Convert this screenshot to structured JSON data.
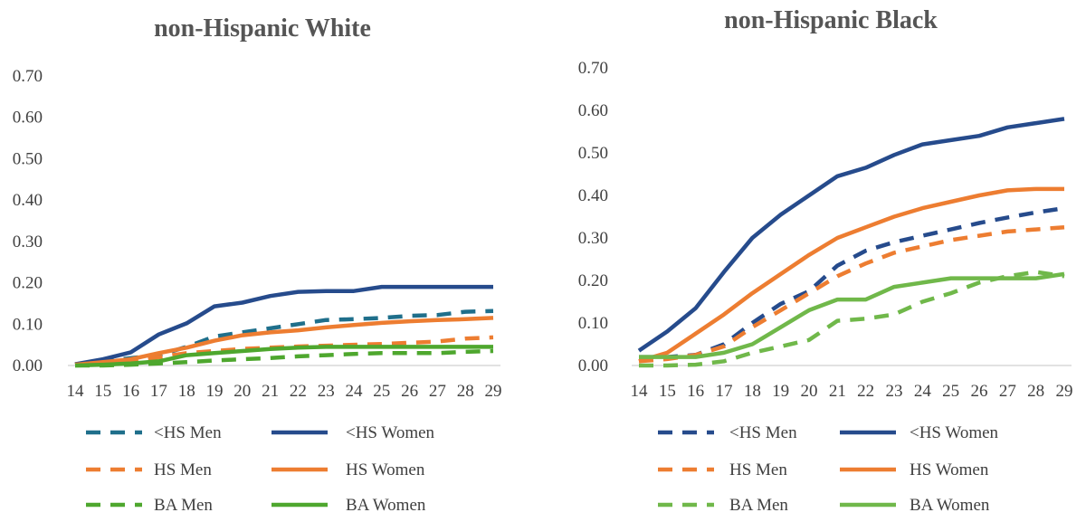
{
  "chart_data": [
    {
      "type": "line",
      "title": "non-Hispanic White",
      "xlabel": "",
      "ylabel": "",
      "x": [
        14,
        15,
        16,
        17,
        18,
        19,
        20,
        21,
        22,
        23,
        24,
        25,
        26,
        27,
        28,
        29
      ],
      "ylim": [
        0,
        0.7
      ],
      "yticks": [
        "0.00",
        "0.10",
        "0.20",
        "0.30",
        "0.40",
        "0.50",
        "0.60",
        "0.70"
      ],
      "grid": false,
      "legend_position": "bottom",
      "series": [
        {
          "name": "<HS Men",
          "color": "#1f6f8b",
          "dash": true,
          "values": [
            0.003,
            0.01,
            0.018,
            0.025,
            0.045,
            0.07,
            0.08,
            0.09,
            0.1,
            0.11,
            0.112,
            0.115,
            0.12,
            0.122,
            0.13,
            0.132
          ]
        },
        {
          "name": "<HS Women",
          "color": "#264b8c",
          "dash": false,
          "values": [
            0.003,
            0.015,
            0.032,
            0.075,
            0.102,
            0.143,
            0.152,
            0.168,
            0.178,
            0.18,
            0.18,
            0.19,
            0.19,
            0.19,
            0.19,
            0.19
          ]
        },
        {
          "name": "HS Men",
          "color": "#ed7d31",
          "dash": true,
          "values": [
            0.002,
            0.005,
            0.01,
            0.02,
            0.03,
            0.035,
            0.04,
            0.043,
            0.046,
            0.048,
            0.05,
            0.052,
            0.055,
            0.058,
            0.065,
            0.068
          ]
        },
        {
          "name": "HS Women",
          "color": "#ed7d31",
          "dash": false,
          "values": [
            0.002,
            0.008,
            0.015,
            0.03,
            0.043,
            0.06,
            0.073,
            0.08,
            0.085,
            0.092,
            0.098,
            0.103,
            0.107,
            0.11,
            0.112,
            0.115
          ]
        },
        {
          "name": "BA Men",
          "color": "#4ea72e",
          "dash": true,
          "values": [
            0.0,
            0.0,
            0.002,
            0.005,
            0.008,
            0.012,
            0.015,
            0.018,
            0.022,
            0.025,
            0.028,
            0.03,
            0.03,
            0.03,
            0.033,
            0.035
          ]
        },
        {
          "name": "BA Women",
          "color": "#4ea72e",
          "dash": false,
          "values": [
            0.0,
            0.002,
            0.005,
            0.01,
            0.025,
            0.03,
            0.035,
            0.04,
            0.043,
            0.045,
            0.045,
            0.045,
            0.045,
            0.045,
            0.045,
            0.045
          ]
        }
      ]
    },
    {
      "type": "line",
      "title": "non-Hispanic Black",
      "xlabel": "",
      "ylabel": "",
      "x": [
        14,
        15,
        16,
        17,
        18,
        19,
        20,
        21,
        22,
        23,
        24,
        25,
        26,
        27,
        28,
        29
      ],
      "ylim": [
        0,
        0.7
      ],
      "yticks": [
        "0.00",
        "0.10",
        "0.20",
        "0.30",
        "0.40",
        "0.50",
        "0.60",
        "0.70"
      ],
      "grid": false,
      "legend_position": "bottom",
      "series": [
        {
          "name": "<HS Men",
          "color": "#264b8c",
          "dash": true,
          "values": [
            0.02,
            0.02,
            0.025,
            0.05,
            0.1,
            0.145,
            0.175,
            0.235,
            0.27,
            0.29,
            0.305,
            0.32,
            0.335,
            0.348,
            0.36,
            0.37
          ]
        },
        {
          "name": "<HS Women",
          "color": "#264b8c",
          "dash": false,
          "values": [
            0.035,
            0.08,
            0.135,
            0.22,
            0.3,
            0.355,
            0.4,
            0.445,
            0.465,
            0.495,
            0.52,
            0.53,
            0.54,
            0.56,
            0.57,
            0.58
          ]
        },
        {
          "name": "HS Men",
          "color": "#ed7d31",
          "dash": true,
          "values": [
            0.01,
            0.015,
            0.025,
            0.045,
            0.09,
            0.13,
            0.17,
            0.21,
            0.24,
            0.265,
            0.28,
            0.295,
            0.305,
            0.315,
            0.32,
            0.325
          ]
        },
        {
          "name": "HS Women",
          "color": "#ed7d31",
          "dash": false,
          "values": [
            0.01,
            0.03,
            0.075,
            0.12,
            0.17,
            0.215,
            0.26,
            0.3,
            0.325,
            0.35,
            0.37,
            0.385,
            0.4,
            0.412,
            0.415,
            0.415
          ]
        },
        {
          "name": "BA Men",
          "color": "#70b84a",
          "dash": true,
          "values": [
            0.0,
            0.0,
            0.002,
            0.01,
            0.03,
            0.045,
            0.06,
            0.105,
            0.11,
            0.12,
            0.15,
            0.17,
            0.195,
            0.21,
            0.22,
            0.21
          ]
        },
        {
          "name": "BA Women",
          "color": "#70b84a",
          "dash": false,
          "values": [
            0.02,
            0.02,
            0.02,
            0.03,
            0.05,
            0.09,
            0.13,
            0.155,
            0.155,
            0.185,
            0.195,
            0.205,
            0.205,
            0.205,
            0.205,
            0.215
          ]
        }
      ]
    }
  ]
}
